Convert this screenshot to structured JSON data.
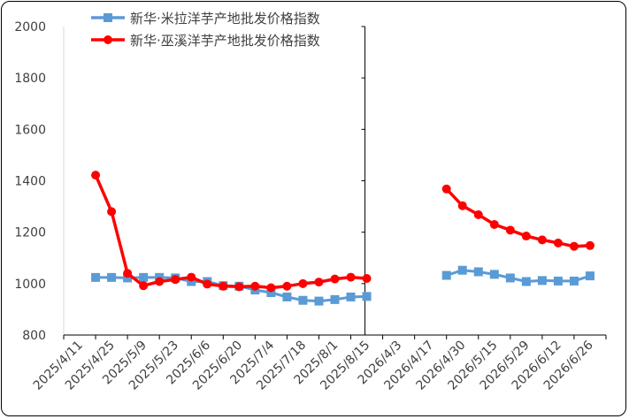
{
  "chart_data": {
    "type": "line",
    "ylim": [
      800,
      2000
    ],
    "yticks": [
      800,
      1000,
      1200,
      1400,
      1600,
      1800,
      2000
    ],
    "x_tick_labels": [
      "2025/4/11",
      "2025/4/25",
      "2025/5/9",
      "2025/5/23",
      "2025/6/6",
      "2025/6/20",
      "2025/7/4",
      "2025/7/18",
      "2025/8/1",
      "2025/8/15",
      "2026/4/3",
      "2026/4/17",
      "2026/4/30",
      "2026/5/15",
      "2026/5/29",
      "2026/6/12",
      "2026/6/26"
    ],
    "series": [
      {
        "name": "新华·米拉洋芋产地批发价格指数",
        "color": "#5b9bd5",
        "marker": "square",
        "points": [
          [
            1,
            1024
          ],
          [
            1.5,
            1024
          ],
          [
            2,
            1022
          ],
          [
            2.5,
            1024
          ],
          [
            3,
            1024
          ],
          [
            3.5,
            1022
          ],
          [
            4,
            1008
          ],
          [
            4.5,
            1008
          ],
          [
            5,
            992
          ],
          [
            5.5,
            990
          ],
          [
            6,
            975
          ],
          [
            6.5,
            965
          ],
          [
            7,
            948
          ],
          [
            7.5,
            935
          ],
          [
            8,
            932
          ],
          [
            8.5,
            938
          ],
          [
            9,
            948
          ],
          [
            9.5,
            950
          ],
          [
            12,
            1032
          ],
          [
            12.5,
            1052
          ],
          [
            13,
            1046
          ],
          [
            13.5,
            1036
          ],
          [
            14,
            1022
          ],
          [
            14.5,
            1008
          ],
          [
            15,
            1012
          ],
          [
            15.5,
            1010
          ],
          [
            16,
            1010
          ],
          [
            16.5,
            1030
          ]
        ]
      },
      {
        "name": "新华·巫溪洋芋产地批发价格指数",
        "color": "#ff0000",
        "marker": "circle",
        "points": [
          [
            1,
            1422
          ],
          [
            1.5,
            1280
          ],
          [
            2,
            1040
          ],
          [
            2.5,
            992
          ],
          [
            3,
            1008
          ],
          [
            3.5,
            1016
          ],
          [
            4,
            1025
          ],
          [
            4.5,
            998
          ],
          [
            5,
            990
          ],
          [
            5.5,
            988
          ],
          [
            6,
            990
          ],
          [
            6.5,
            984
          ],
          [
            7,
            990
          ],
          [
            7.5,
            1000
          ],
          [
            8,
            1006
          ],
          [
            8.5,
            1018
          ],
          [
            9,
            1025
          ],
          [
            9.5,
            1020
          ],
          [
            12,
            1368
          ],
          [
            12.5,
            1303
          ],
          [
            13,
            1268
          ],
          [
            13.5,
            1230
          ],
          [
            14,
            1208
          ],
          [
            14.5,
            1185
          ],
          [
            15,
            1170
          ],
          [
            15.5,
            1158
          ],
          [
            16,
            1145
          ],
          [
            16.5,
            1148
          ]
        ]
      }
    ],
    "gap_marker_x": 9.5
  }
}
